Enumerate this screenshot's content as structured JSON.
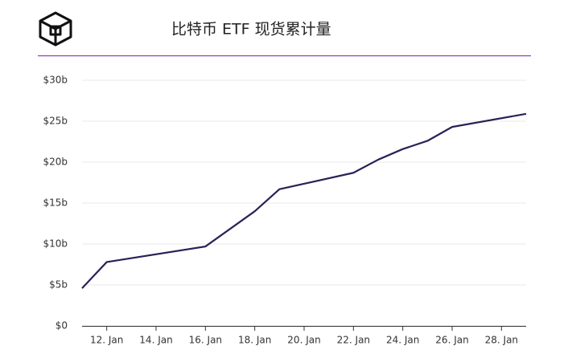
{
  "chart_data": {
    "type": "line",
    "title": "比特币 ETF 现货累计量",
    "x": [
      11,
      12,
      16,
      18,
      19,
      22,
      23,
      24,
      25,
      26,
      29
    ],
    "series": [
      {
        "color": "#2b2157",
        "values": [
          4.6,
          7.8,
          9.7,
          14,
          16.7,
          18.7,
          20.3,
          21.6,
          22.6,
          24.3,
          25.9
        ]
      }
    ],
    "xlim": [
      11,
      29
    ],
    "xticks": [
      {
        "value": 12,
        "label": "12. Jan"
      },
      {
        "value": 14,
        "label": "14. Jan"
      },
      {
        "value": 16,
        "label": "16. Jan"
      },
      {
        "value": 18,
        "label": "18. Jan"
      },
      {
        "value": 20,
        "label": "20. Jan"
      },
      {
        "value": 22,
        "label": "22. Jan"
      },
      {
        "value": 24,
        "label": "24. Jan"
      },
      {
        "value": 26,
        "label": "26. Jan"
      },
      {
        "value": 28,
        "label": "28. Jan"
      }
    ],
    "ylim": [
      0,
      30
    ],
    "yticks": [
      {
        "value": 0,
        "label": "$0"
      },
      {
        "value": 5,
        "label": "$5b"
      },
      {
        "value": 10,
        "label": "$10b"
      },
      {
        "value": 15,
        "label": "$15b"
      },
      {
        "value": 20,
        "label": "$20b"
      },
      {
        "value": 25,
        "label": "$25b"
      },
      {
        "value": 30,
        "label": "$30b"
      }
    ],
    "grid": true
  }
}
